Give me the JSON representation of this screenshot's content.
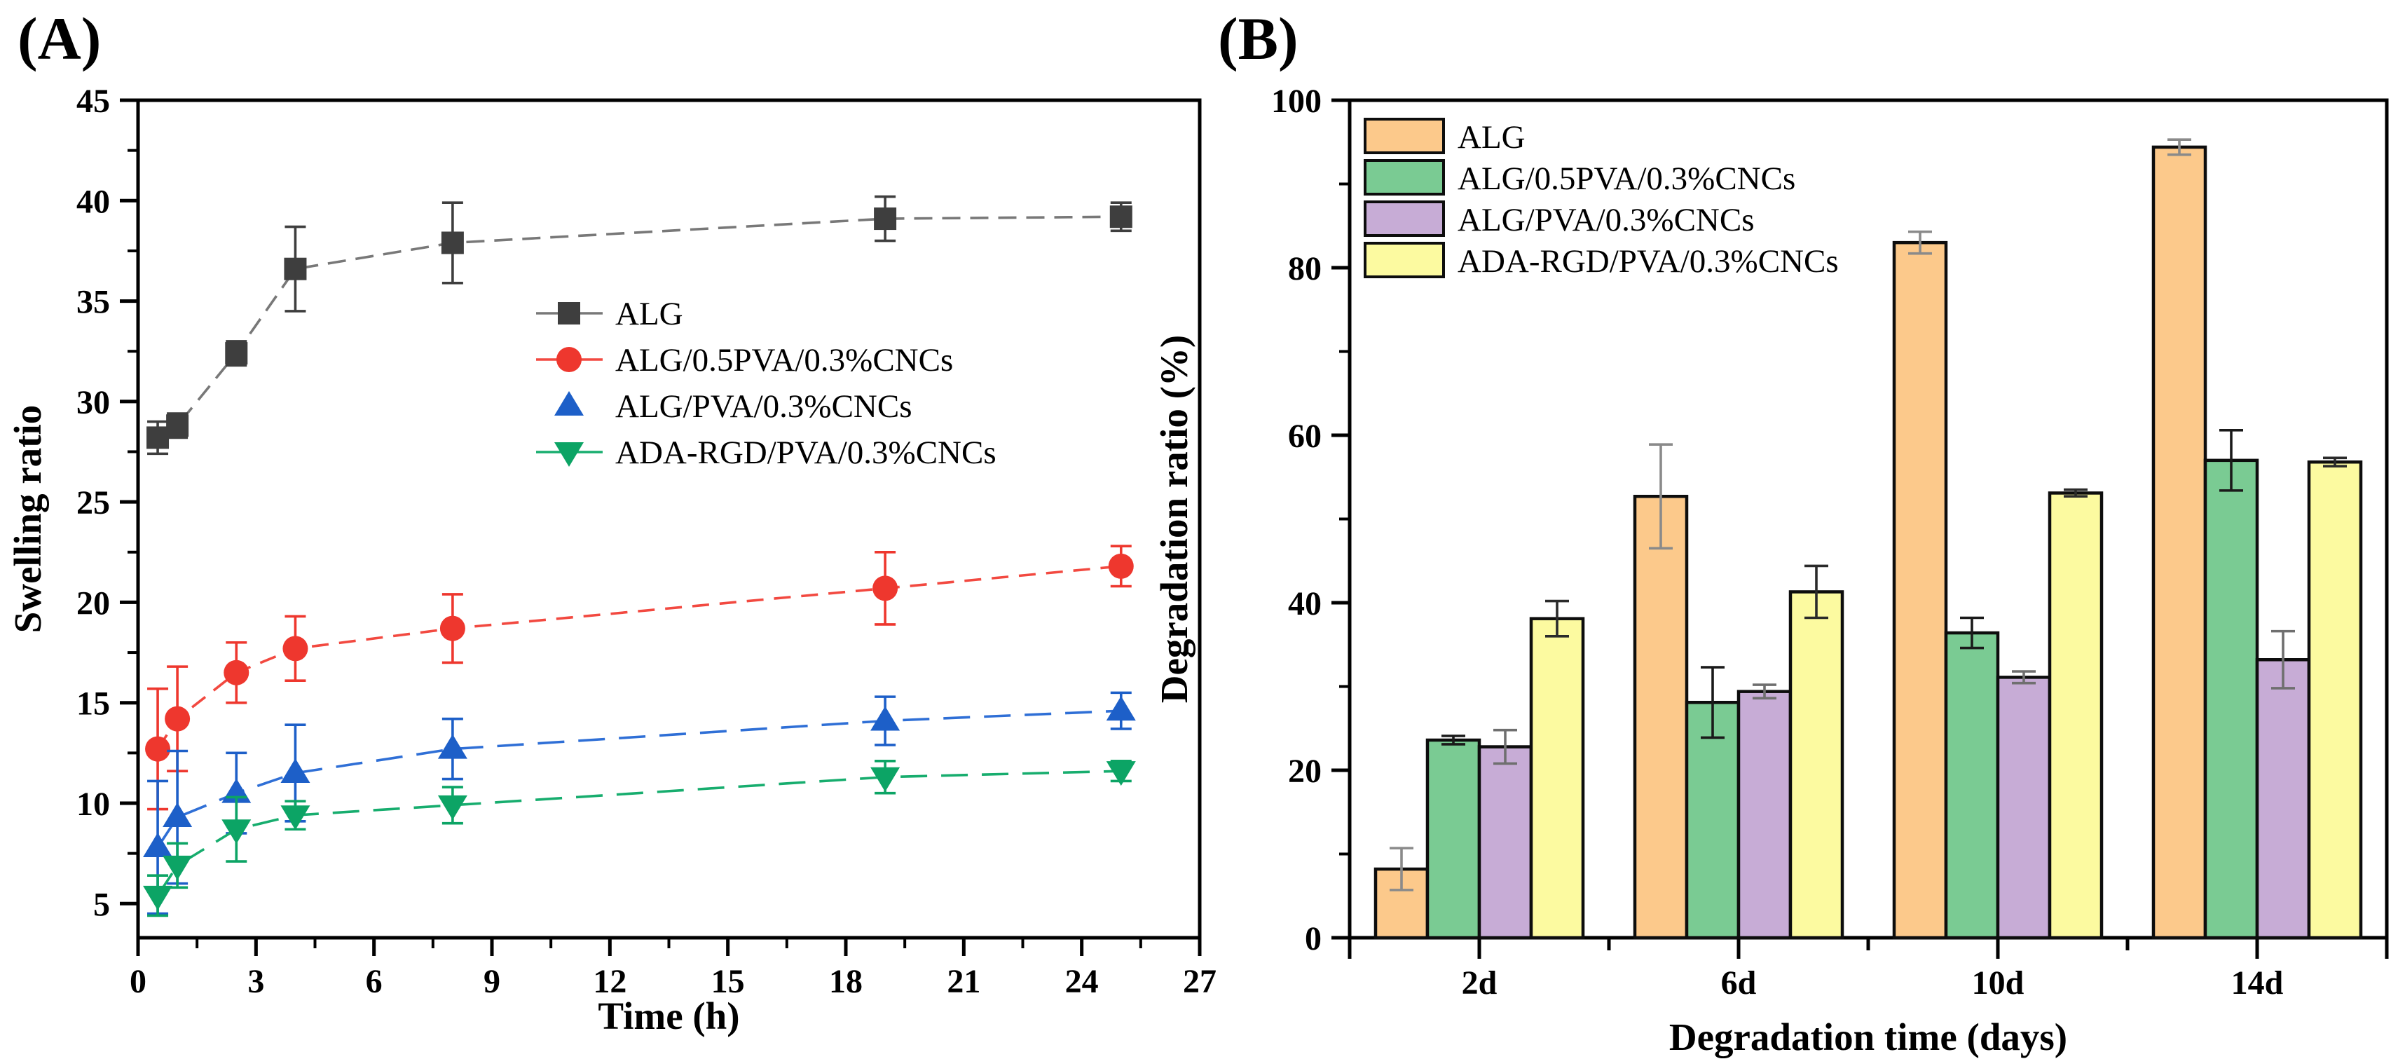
{
  "figure": {
    "background": "#ffffff",
    "panels": [
      {
        "tag": "(A)"
      },
      {
        "tag": "(B)"
      }
    ]
  },
  "chart_data": [
    {
      "type": "line",
      "tag": "(A)",
      "xlabel": "Time (h)",
      "ylabel": "Swelling ratio",
      "xlim": [
        0,
        27
      ],
      "ylim": [
        3.3,
        45
      ],
      "x_major_ticks": [
        0,
        3,
        6,
        9,
        12,
        15,
        18,
        21,
        24,
        27
      ],
      "x_minor_ticks": [
        1.5,
        4.5,
        7.5,
        10.5,
        13.5,
        16.5,
        19.5,
        22.5,
        25.5
      ],
      "y_major_ticks": [
        5,
        10,
        15,
        20,
        25,
        30,
        35,
        40,
        45
      ],
      "y_minor_ticks": [
        7.5,
        12.5,
        17.5,
        22.5,
        27.5,
        32.5,
        37.5,
        42.5
      ],
      "grid": "off",
      "legend_position": "center-right-upper",
      "x": [
        0.5,
        1,
        2.5,
        4,
        8,
        19,
        25
      ],
      "series": [
        {
          "name": "ALG",
          "marker": "square",
          "color": "#3e3e3e",
          "line_color": "#787878",
          "dash": "26 14",
          "legend_line": true,
          "values": [
            28.2,
            28.8,
            32.4,
            36.6,
            37.9,
            39.1,
            39.2
          ],
          "errors": [
            0.8,
            0.6,
            0.6,
            2.1,
            2.0,
            1.1,
            0.7
          ]
        },
        {
          "name": "ALG/0.5PVA/0.3%CNCs",
          "marker": "circle",
          "color": "#ee372e",
          "line_color": "#f24940",
          "dash": "24 15",
          "legend_line": true,
          "values": [
            12.7,
            14.2,
            16.5,
            17.7,
            18.7,
            20.7,
            21.8
          ],
          "errors": [
            3.0,
            2.6,
            1.5,
            1.6,
            1.7,
            1.8,
            1.0
          ]
        },
        {
          "name": "ALG/PVA/0.3%CNCs",
          "marker": "triangle-up",
          "color": "#1d5fc8",
          "line_color": "#2f6fd6",
          "dash": "38 20",
          "legend_line": false,
          "values": [
            7.8,
            9.3,
            10.5,
            11.5,
            12.7,
            14.1,
            14.6
          ],
          "errors": [
            3.3,
            3.3,
            2.0,
            2.4,
            1.5,
            1.2,
            0.9
          ]
        },
        {
          "name": "ADA-RGD/PVA/0.3%CNCs",
          "marker": "triangle-down",
          "color": "#0ca465",
          "line_color": "#17ad6e",
          "dash": "38 20",
          "legend_line": true,
          "values": [
            5.4,
            6.9,
            8.7,
            9.4,
            9.9,
            11.3,
            11.6
          ],
          "errors": [
            1.0,
            1.1,
            1.6,
            0.7,
            0.9,
            0.8,
            0.5
          ]
        }
      ]
    },
    {
      "type": "bar",
      "tag": "(B)",
      "xlabel": "Degradation time (days)",
      "ylabel": "Degradation ratio (%)",
      "ylim": [
        0,
        100
      ],
      "y_major_ticks": [
        0,
        20,
        40,
        60,
        80,
        100
      ],
      "y_minor_ticks": [
        10,
        30,
        50,
        70,
        90
      ],
      "grid": "off",
      "legend_position": "top-left",
      "categories": [
        "2d",
        "6d",
        "10d",
        "14d"
      ],
      "series": [
        {
          "name": "ALG",
          "color": "#fcc98b",
          "error_color": "#8a8a8a",
          "values": [
            8.2,
            52.7,
            83.0,
            94.4
          ],
          "errors": [
            2.5,
            6.2,
            1.3,
            0.9
          ]
        },
        {
          "name": "ALG/0.5PVA/0.3%CNCs",
          "color": "#7acb93",
          "error_color": "#1a1a1a",
          "values": [
            23.6,
            28.1,
            36.4,
            57.0
          ],
          "errors": [
            0.5,
            4.2,
            1.8,
            3.6
          ]
        },
        {
          "name": "ALG/PVA/0.3%CNCs",
          "color": "#c7acd6",
          "error_color": "#6f6f6f",
          "values": [
            22.8,
            29.4,
            31.1,
            33.2
          ],
          "errors": [
            2.0,
            0.8,
            0.7,
            3.4
          ]
        },
        {
          "name": "ADA-RGD/PVA/0.3%CNCs",
          "color": "#fcfaa0",
          "error_color": "#2a2a2a",
          "values": [
            38.1,
            41.3,
            53.1,
            56.8
          ],
          "errors": [
            2.1,
            3.1,
            0.4,
            0.5
          ]
        }
      ]
    }
  ]
}
